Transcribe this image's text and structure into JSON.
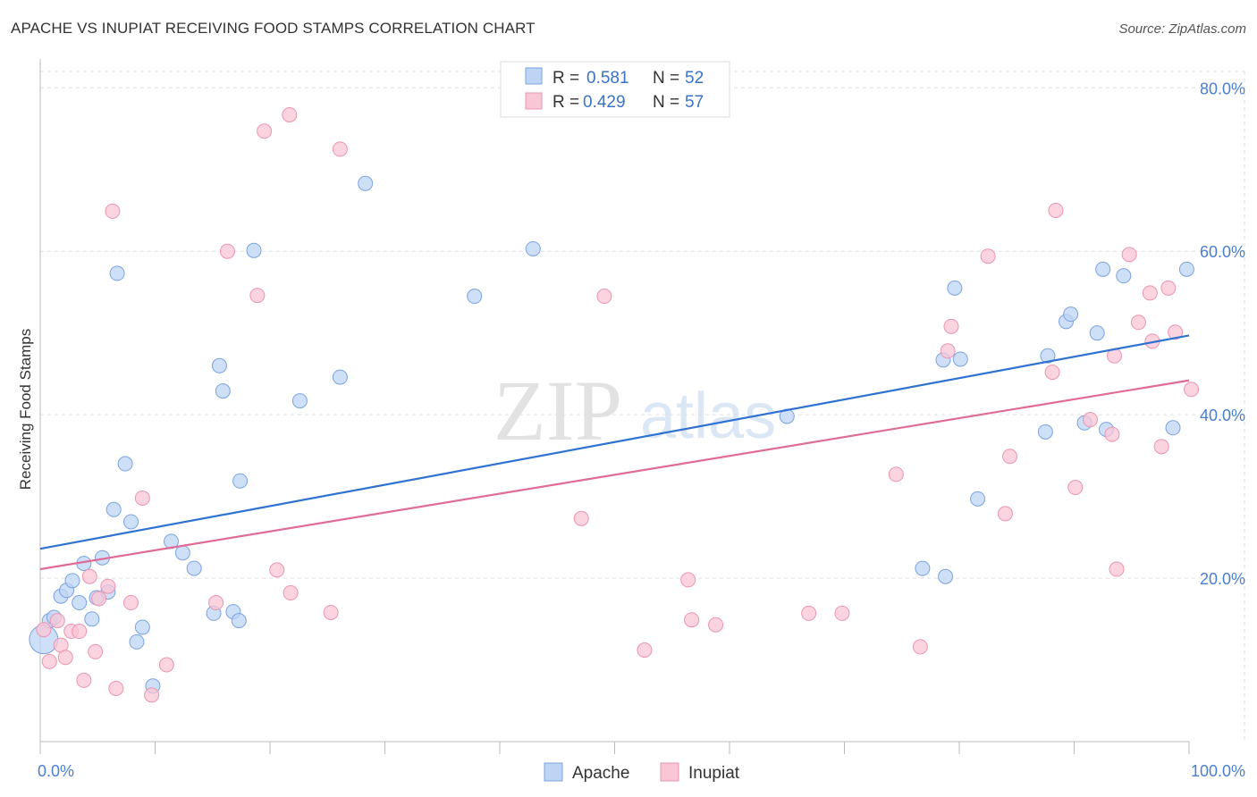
{
  "header": {
    "title": "APACHE VS INUPIAT RECEIVING FOOD STAMPS CORRELATION CHART",
    "source": "Source: ZipAtlas.com"
  },
  "watermark": {
    "zip": "ZIP",
    "atlas": "atlas"
  },
  "colors": {
    "apache_fill": "#bdd4f5",
    "apache_stroke": "#7aa3e0",
    "apache_line": "#2f72d2",
    "inupiat_fill": "#f9c6d6",
    "inupiat_stroke": "#eb94b2",
    "inupiat_line": "#e06b97",
    "grid": "#e0e0e0",
    "axis_label": "#4a7fd0"
  },
  "stats_legend": {
    "apache": {
      "r_label": "R =",
      "r_value": "0.581",
      "n_label": "N =",
      "n_value": "52"
    },
    "inupiat": {
      "r_label": "R =",
      "r_value": "0.429",
      "n_label": "N =",
      "n_value": "57"
    }
  },
  "chart_data": {
    "type": "scatter",
    "title": "APACHE VS INUPIAT RECEIVING FOOD STAMPS CORRELATION CHART",
    "xlabel": "",
    "ylabel": "Receiving Food Stamps",
    "xlim": [
      0,
      100
    ],
    "ylim": [
      0,
      82
    ],
    "x_tick_labels": [
      "0.0%",
      "100.0%"
    ],
    "y_ticks": [
      20,
      40,
      60,
      80
    ],
    "y_tick_labels": [
      "20.0%",
      "40.0%",
      "60.0%",
      "80.0%"
    ],
    "legend": [
      "Apache",
      "Inupiat"
    ],
    "series": [
      {
        "name": "Apache",
        "trend": {
          "x0": 0,
          "y0": 23.6,
          "x1": 100,
          "y1": 49.7
        },
        "points": [
          [
            0.3,
            12.5
          ],
          [
            0.8,
            14.8
          ],
          [
            1.2,
            15.2
          ],
          [
            1.8,
            17.8
          ],
          [
            2.3,
            18.5
          ],
          [
            2.8,
            19.7
          ],
          [
            3.4,
            17.0
          ],
          [
            3.8,
            21.8
          ],
          [
            4.5,
            15.0
          ],
          [
            4.9,
            17.6
          ],
          [
            5.4,
            22.5
          ],
          [
            5.9,
            18.3
          ],
          [
            6.4,
            28.4
          ],
          [
            6.7,
            57.3
          ],
          [
            7.4,
            34.0
          ],
          [
            7.9,
            26.9
          ],
          [
            8.4,
            12.2
          ],
          [
            8.9,
            14.0
          ],
          [
            9.8,
            6.8
          ],
          [
            11.4,
            24.5
          ],
          [
            12.4,
            23.1
          ],
          [
            13.4,
            21.2
          ],
          [
            15.1,
            15.7
          ],
          [
            15.6,
            46.0
          ],
          [
            15.9,
            42.9
          ],
          [
            16.8,
            15.9
          ],
          [
            17.4,
            31.9
          ],
          [
            17.3,
            14.8
          ],
          [
            18.6,
            60.1
          ],
          [
            22.6,
            41.7
          ],
          [
            26.1,
            44.6
          ],
          [
            28.3,
            68.3
          ],
          [
            37.8,
            54.5
          ],
          [
            42.9,
            60.3
          ],
          [
            65.0,
            39.8
          ],
          [
            76.8,
            21.2
          ],
          [
            78.6,
            46.7
          ],
          [
            78.8,
            20.2
          ],
          [
            79.6,
            55.5
          ],
          [
            80.1,
            46.8
          ],
          [
            81.6,
            29.7
          ],
          [
            87.5,
            37.9
          ],
          [
            87.7,
            47.2
          ],
          [
            89.3,
            51.4
          ],
          [
            89.7,
            52.3
          ],
          [
            90.9,
            39.0
          ],
          [
            92.0,
            50.0
          ],
          [
            92.5,
            57.8
          ],
          [
            92.8,
            38.2
          ],
          [
            94.3,
            57.0
          ],
          [
            98.6,
            38.4
          ],
          [
            99.8,
            57.8
          ]
        ]
      },
      {
        "name": "Inupiat",
        "trend": {
          "x0": 0,
          "y0": 21.1,
          "x1": 100,
          "y1": 44.2
        },
        "points": [
          [
            0.3,
            13.7
          ],
          [
            0.8,
            9.8
          ],
          [
            1.5,
            14.8
          ],
          [
            1.8,
            11.8
          ],
          [
            2.2,
            10.3
          ],
          [
            2.7,
            13.5
          ],
          [
            3.4,
            13.5
          ],
          [
            3.8,
            7.5
          ],
          [
            4.3,
            20.2
          ],
          [
            4.8,
            11.0
          ],
          [
            5.1,
            17.5
          ],
          [
            5.9,
            19.0
          ],
          [
            6.3,
            64.9
          ],
          [
            6.6,
            6.5
          ],
          [
            7.9,
            17.0
          ],
          [
            8.9,
            29.8
          ],
          [
            9.7,
            5.7
          ],
          [
            11.0,
            9.4
          ],
          [
            15.3,
            17.0
          ],
          [
            16.3,
            60.0
          ],
          [
            18.9,
            54.6
          ],
          [
            19.5,
            74.7
          ],
          [
            20.6,
            21.0
          ],
          [
            21.7,
            76.7
          ],
          [
            21.8,
            18.2
          ],
          [
            25.3,
            15.8
          ],
          [
            26.1,
            72.5
          ],
          [
            47.1,
            27.3
          ],
          [
            49.1,
            54.5
          ],
          [
            52.6,
            11.2
          ],
          [
            56.4,
            19.8
          ],
          [
            56.7,
            14.9
          ],
          [
            58.8,
            14.3
          ],
          [
            66.9,
            15.7
          ],
          [
            69.8,
            15.7
          ],
          [
            74.5,
            32.7
          ],
          [
            76.6,
            11.6
          ],
          [
            79.0,
            47.8
          ],
          [
            79.3,
            50.8
          ],
          [
            82.5,
            59.4
          ],
          [
            84.0,
            27.9
          ],
          [
            84.4,
            34.9
          ],
          [
            88.1,
            45.2
          ],
          [
            88.4,
            65.0
          ],
          [
            90.1,
            31.1
          ],
          [
            91.4,
            39.4
          ],
          [
            93.3,
            37.6
          ],
          [
            93.5,
            47.2
          ],
          [
            93.7,
            21.1
          ],
          [
            94.8,
            59.6
          ],
          [
            95.6,
            51.3
          ],
          [
            96.6,
            54.9
          ],
          [
            96.8,
            49.0
          ],
          [
            97.6,
            36.1
          ],
          [
            98.2,
            55.5
          ],
          [
            98.8,
            50.1
          ],
          [
            100.2,
            43.1
          ]
        ]
      }
    ]
  }
}
